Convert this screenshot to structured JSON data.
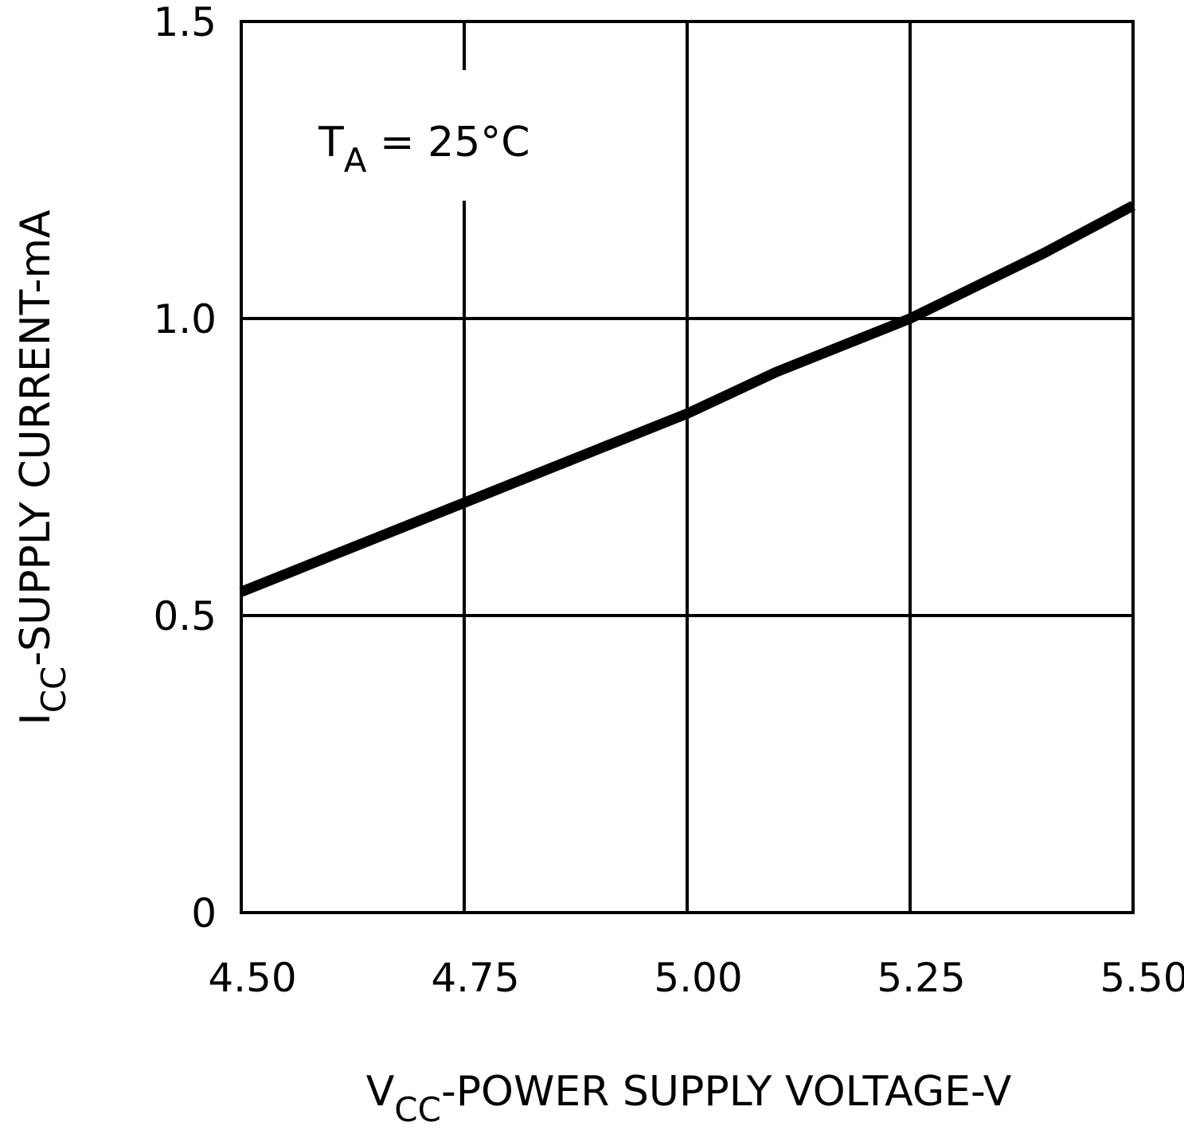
{
  "chart_data": {
    "type": "line",
    "xlabel": {
      "prefix": "V",
      "sub": "CC",
      "rest": "-POWER SUPPLY VOLTAGE-V"
    },
    "ylabel": {
      "prefix": "I",
      "sub": "CC",
      "rest": "-SUPPLY CURRENT-mA"
    },
    "annotation": {
      "prefix": "T",
      "sub": "A",
      "rest": " = 25°C"
    },
    "xlim": [
      4.5,
      5.5
    ],
    "ylim": [
      0,
      1.5
    ],
    "x_ticks": [
      {
        "value": 4.5,
        "label": "4.50"
      },
      {
        "value": 4.75,
        "label": "4.75"
      },
      {
        "value": 5.0,
        "label": "5.00"
      },
      {
        "value": 5.25,
        "label": "5.25"
      },
      {
        "value": 5.5,
        "label": "5.50"
      }
    ],
    "y_ticks": [
      {
        "value": 0,
        "label": "0"
      },
      {
        "value": 0.5,
        "label": "0.5"
      },
      {
        "value": 1.0,
        "label": "1.0"
      },
      {
        "value": 1.5,
        "label": "1.5"
      }
    ],
    "grid": true,
    "series": [
      {
        "x": [
          4.5,
          4.6,
          4.75,
          4.9,
          5.0,
          5.1,
          5.25,
          5.4,
          5.5
        ],
        "y": [
          0.54,
          0.6,
          0.69,
          0.78,
          0.84,
          0.91,
          1.0,
          1.11,
          1.19
        ]
      }
    ],
    "colors": {
      "line": "#000000",
      "grid": "#000000",
      "background": "#ffffff"
    }
  }
}
